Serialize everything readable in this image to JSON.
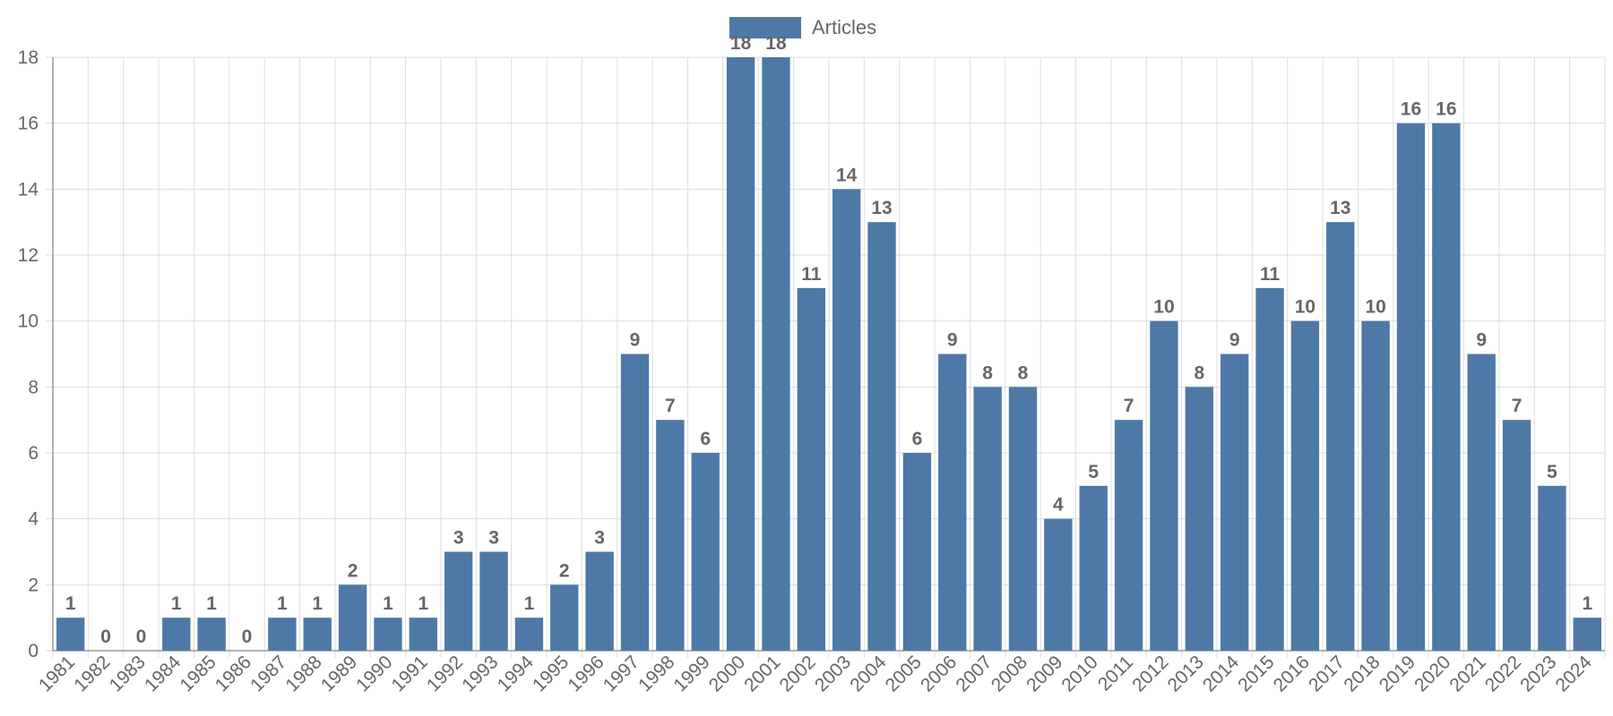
{
  "colors": {
    "bar": "#4e79a7",
    "grid": "#dddddd",
    "axis": "#999999",
    "text": "#666666"
  },
  "chart_data": {
    "type": "bar",
    "title": "",
    "xlabel": "",
    "ylabel": "",
    "ylim": [
      0,
      18
    ],
    "yticks": [
      0,
      2,
      4,
      6,
      8,
      10,
      12,
      14,
      16,
      18
    ],
    "grid": true,
    "legend_position": "top-center",
    "categories": [
      "1981",
      "1982",
      "1983",
      "1984",
      "1985",
      "1986",
      "1987",
      "1988",
      "1989",
      "1990",
      "1991",
      "1992",
      "1993",
      "1994",
      "1995",
      "1996",
      "1997",
      "1998",
      "1999",
      "2000",
      "2001",
      "2002",
      "2003",
      "2004",
      "2005",
      "2006",
      "2007",
      "2008",
      "2009",
      "2010",
      "2011",
      "2012",
      "2013",
      "2014",
      "2015",
      "2016",
      "2017",
      "2018",
      "2019",
      "2020",
      "2021",
      "2022",
      "2023",
      "2024"
    ],
    "series": [
      {
        "name": "Articles",
        "values": [
          1,
          0,
          0,
          1,
          1,
          0,
          1,
          1,
          2,
          1,
          1,
          3,
          3,
          1,
          2,
          3,
          9,
          7,
          6,
          18,
          18,
          11,
          14,
          13,
          6,
          9,
          8,
          8,
          4,
          5,
          7,
          10,
          8,
          9,
          11,
          10,
          13,
          10,
          16,
          16,
          9,
          7,
          5,
          1
        ]
      }
    ]
  }
}
